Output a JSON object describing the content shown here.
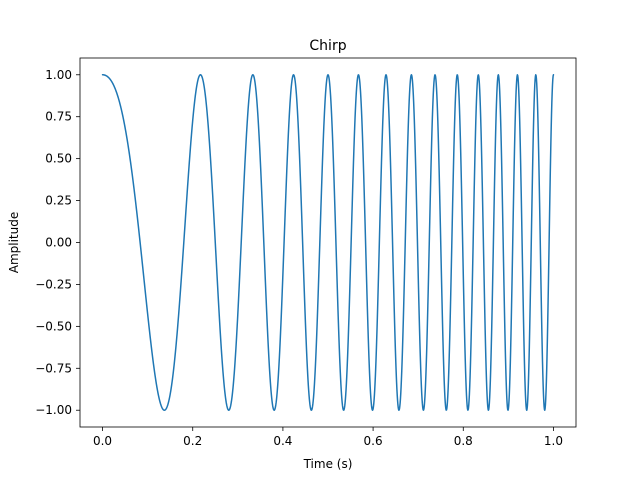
{
  "chart_data": {
    "type": "line",
    "title": "Chirp",
    "xlabel": "Time (s)",
    "ylabel": "Amplitude",
    "xlim": [
      -0.05,
      1.05
    ],
    "ylim": [
      -1.1,
      1.1
    ],
    "xticks": [
      0.0,
      0.2,
      0.4,
      0.6,
      0.8,
      1.0
    ],
    "xtick_labels": [
      "0.0",
      "0.2",
      "0.4",
      "0.6",
      "0.8",
      "1.0"
    ],
    "yticks": [
      1.0,
      0.75,
      0.5,
      0.25,
      0.0,
      -0.25,
      -0.5,
      -0.75,
      -1.0
    ],
    "ytick_labels": [
      "1.00",
      "0.75",
      "0.50",
      "0.25",
      "0.00",
      "−0.25",
      "−0.50",
      "−0.75",
      "−1.00"
    ],
    "grid": false,
    "series": [
      {
        "color": "#1f77b4",
        "function": "cos(2*pi*(2*t + 24*t^2/2))",
        "x_start": 0.0,
        "x_end": 1.0
      }
    ]
  }
}
